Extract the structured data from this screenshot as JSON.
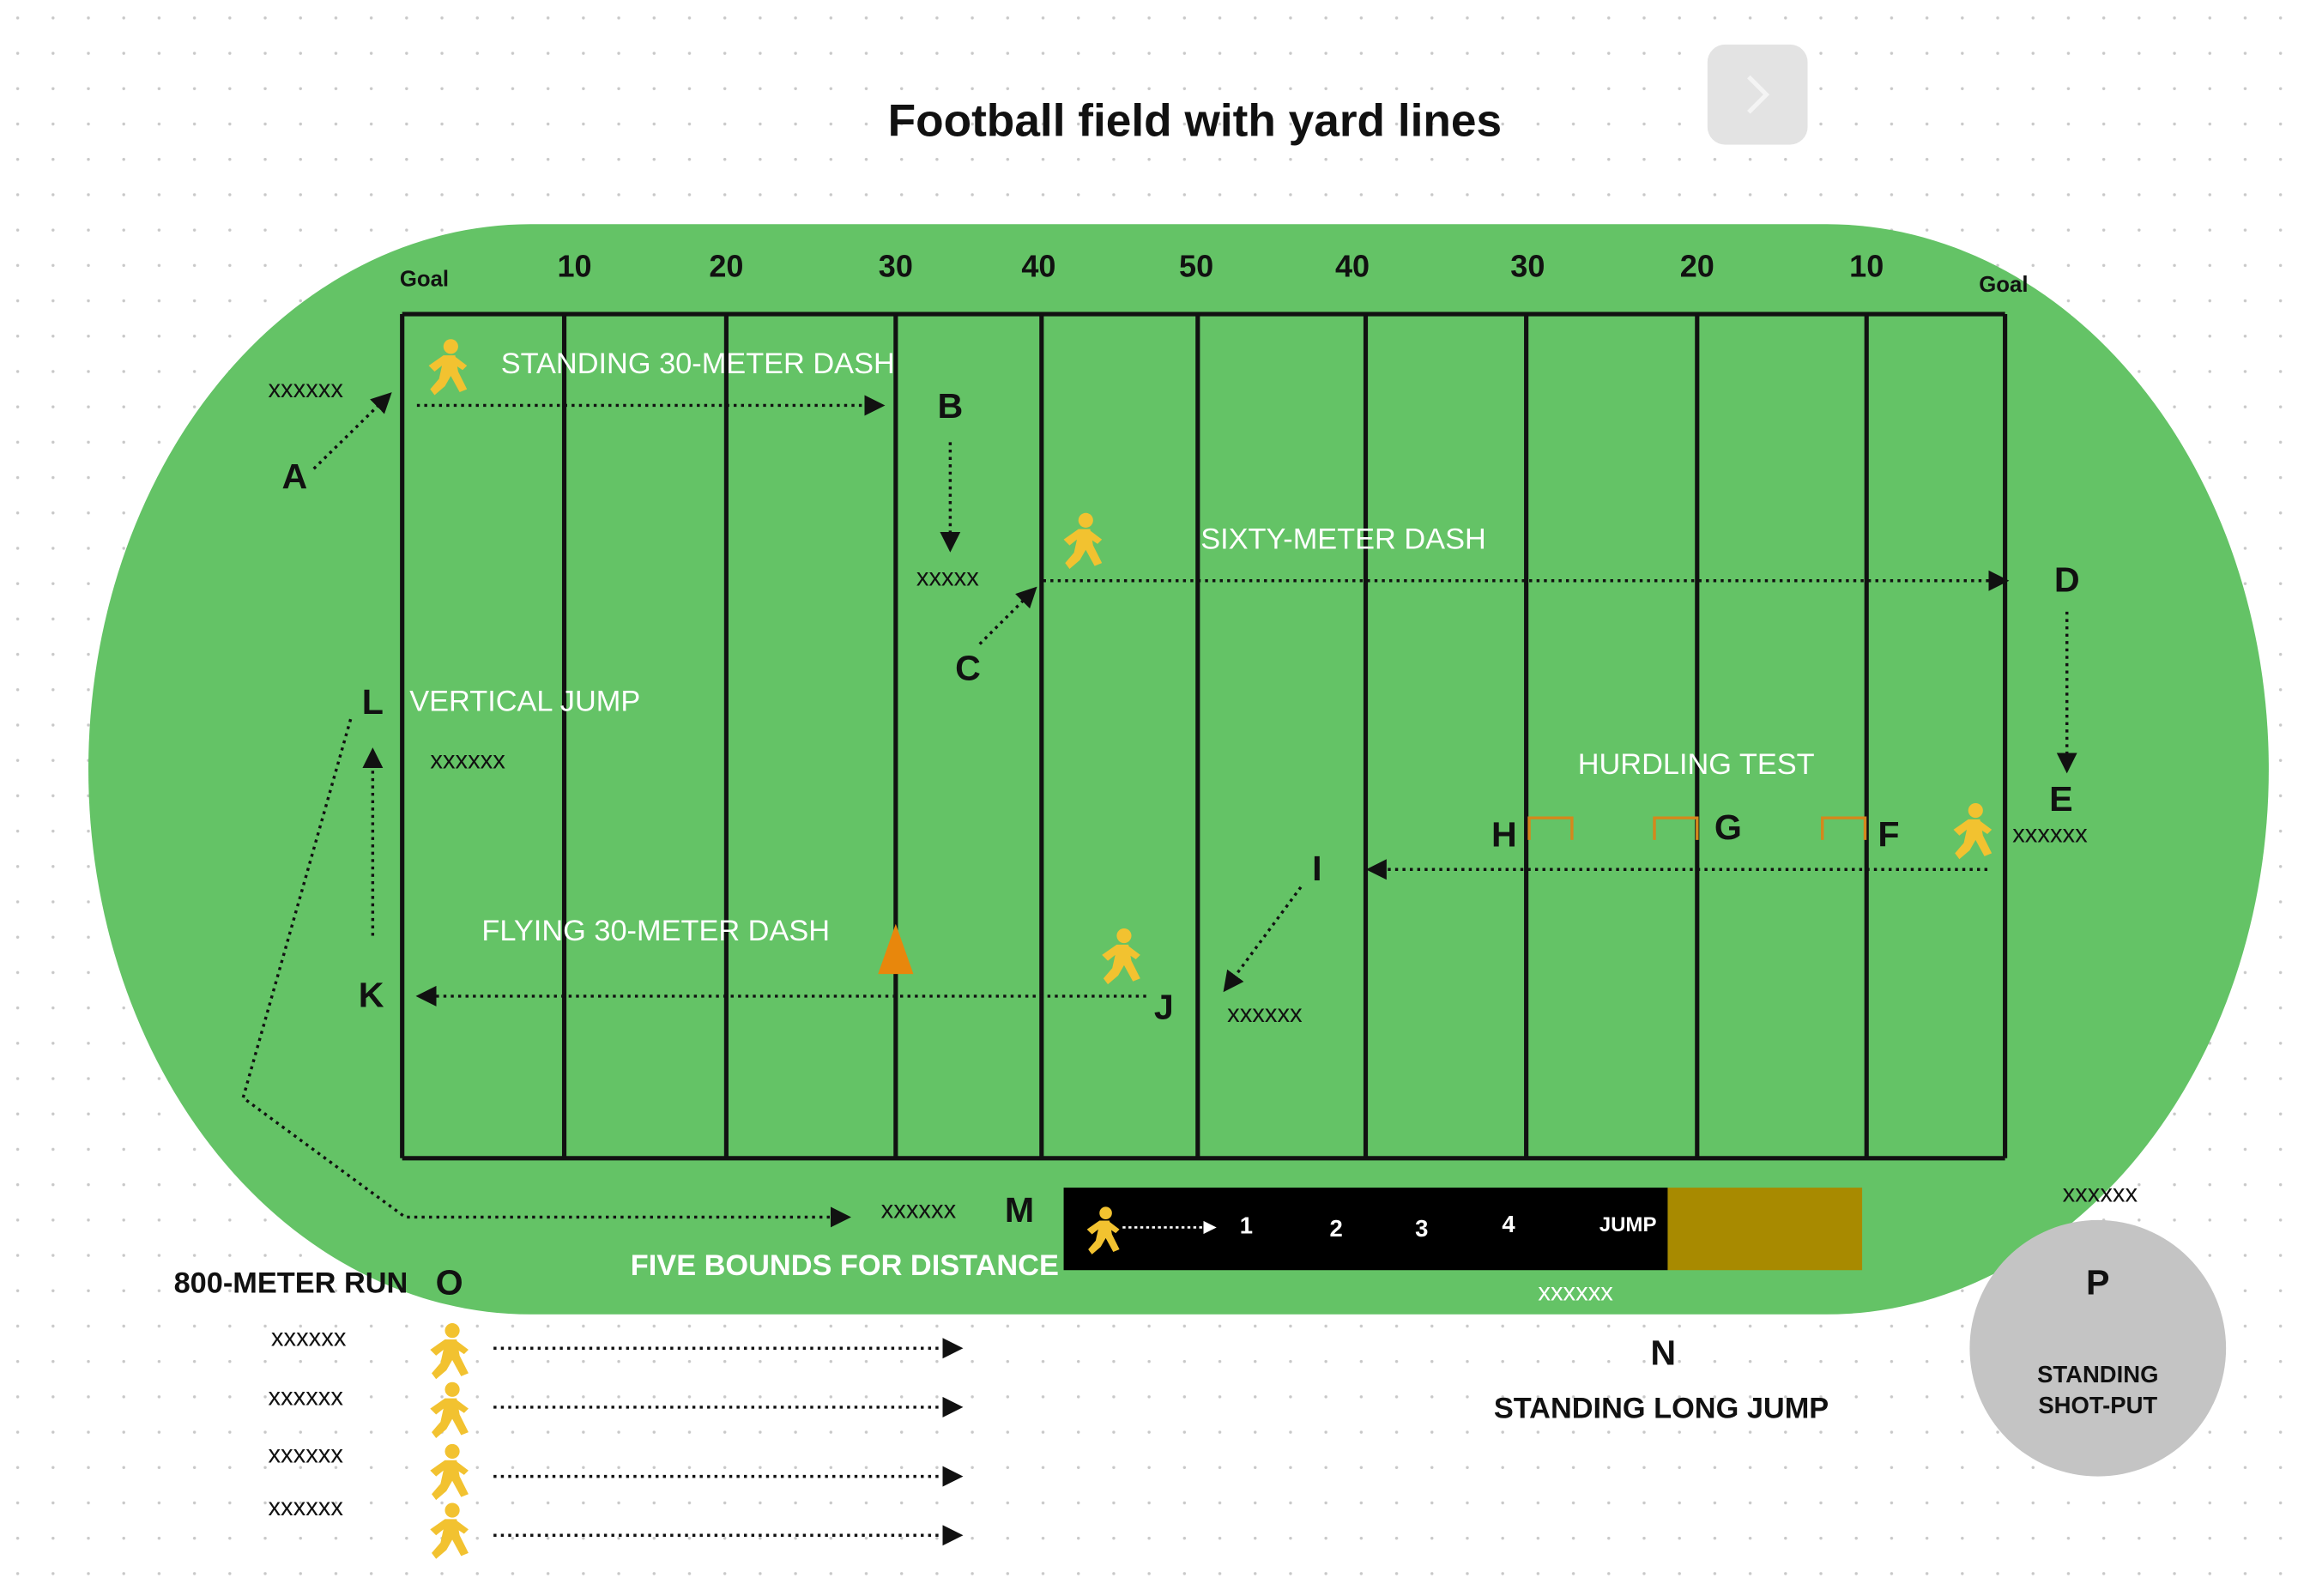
{
  "title": "Football field with yard lines",
  "yard_labels": [
    "Goal",
    "10",
    "20",
    "30",
    "40",
    "50",
    "40",
    "30",
    "20",
    "10",
    "Goal"
  ],
  "stations": [
    "A",
    "B",
    "C",
    "D",
    "E",
    "F",
    "G",
    "H",
    "I",
    "J",
    "K",
    "L",
    "M",
    "N",
    "O",
    "P"
  ],
  "activities": {
    "standing_dash": "STANDING 30-METER DASH",
    "sixty_dash": "SIXTY-METER DASH",
    "vertical_jump": "VERTICAL JUMP",
    "hurdling": "HURDLING TEST",
    "flying_dash": "FLYING 30-METER DASH",
    "five_bounds": "FIVE BOUNDS FOR DISTANCE",
    "run_800": "800-METER RUN",
    "long_jump": "STANDING LONG JUMP",
    "shot_put": [
      "STANDING",
      "SHOT-PUT"
    ]
  },
  "placeholders": [
    "xxxxxx",
    "xxxxx",
    "xxxxxx",
    "xxxxxx",
    "xxxxxx",
    "xxxxxx",
    "xxxxxx",
    "xxxxxx",
    "xxxxxx",
    "xxxxxx",
    "xxxxxx",
    "xxxxxx"
  ],
  "jump_steps": [
    "1",
    "2",
    "3",
    "4",
    "JUMP"
  ]
}
